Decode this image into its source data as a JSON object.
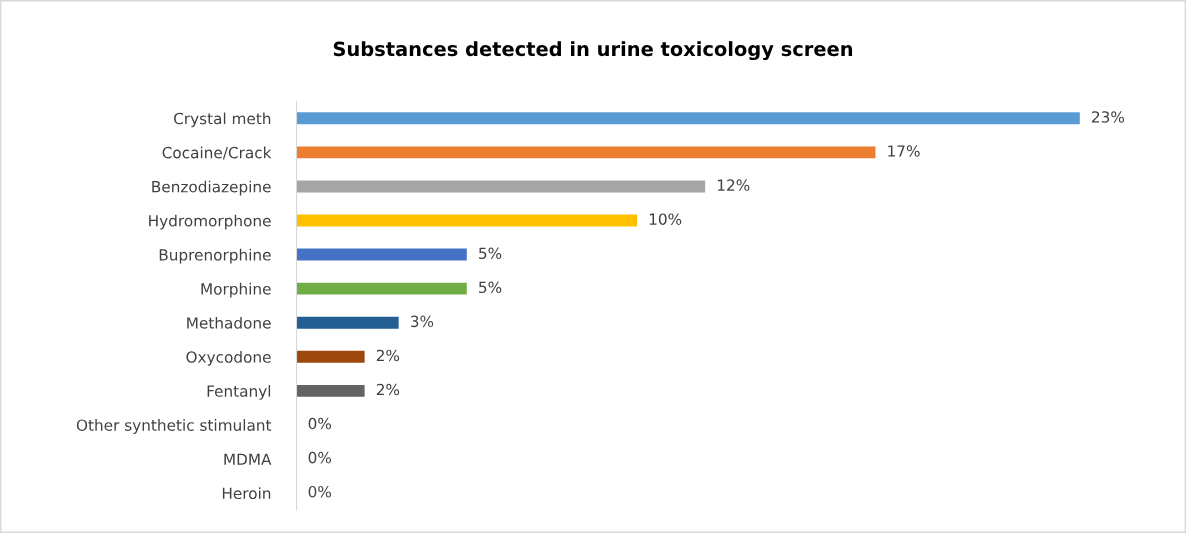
{
  "chart_data": {
    "type": "bar",
    "orientation": "horizontal",
    "title": "Substances detected in urine toxicology screen",
    "categories": [
      "Crystal meth",
      "Cocaine/Crack",
      "Benzodiazepine",
      "Hydromorphone",
      "Buprenorphine",
      "Morphine",
      "Methadone",
      "Oxycodone",
      "Fentanyl",
      "Other synthetic stimulant",
      "MDMA",
      "Heroin"
    ],
    "values": [
      23,
      17,
      12,
      10,
      5,
      5,
      3,
      2,
      2,
      0,
      0,
      0
    ],
    "value_labels": [
      "23%",
      "17%",
      "12%",
      "10%",
      "5%",
      "5%",
      "3%",
      "2%",
      "2%",
      "0%",
      "0%",
      "0%"
    ],
    "colors": [
      "#5b9bd5",
      "#ed7d31",
      "#a5a5a5",
      "#ffc000",
      "#4472c4",
      "#70ad47",
      "#255e91",
      "#9e480e",
      "#636363",
      "#5b9bd5",
      "#ed7d31",
      "#a5a5a5"
    ],
    "grid": false,
    "legend": false
  }
}
